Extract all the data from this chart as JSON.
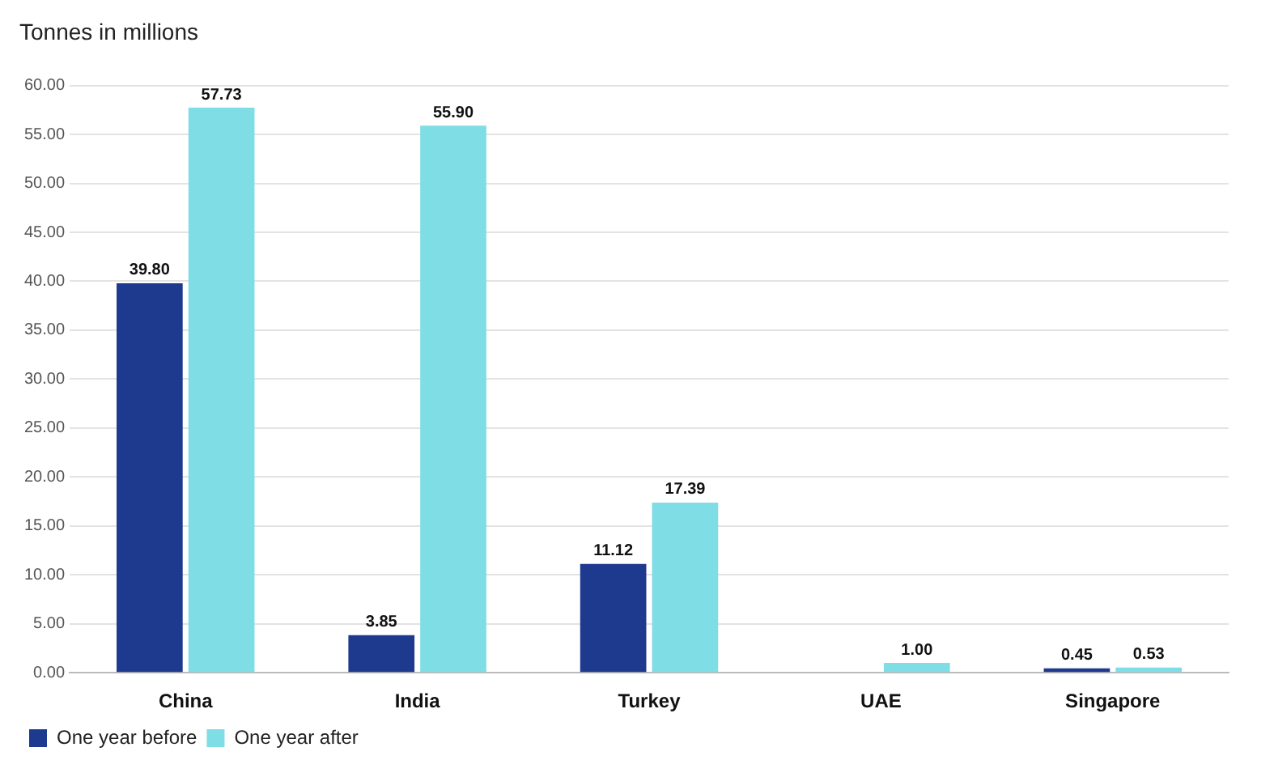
{
  "chart_data": {
    "type": "bar",
    "title": "Tonnes in millions",
    "categories": [
      "China",
      "India",
      "Turkey",
      "UAE",
      "Singapore"
    ],
    "series": [
      {
        "name": "One year before",
        "color": "#1e3a8f",
        "values": [
          39.8,
          3.85,
          11.12,
          null,
          0.45
        ],
        "value_labels": [
          "39.80",
          "3.85",
          "11.12",
          null,
          "0.45"
        ]
      },
      {
        "name": "One year after",
        "color": "#7fdde6",
        "values": [
          57.73,
          55.9,
          17.39,
          1.0,
          0.53
        ],
        "value_labels": [
          "57.73",
          "55.90",
          "17.39",
          "1.00",
          "0.53"
        ]
      }
    ],
    "ylim": [
      0,
      60
    ],
    "yticks": [
      {
        "value": 0,
        "label": "0.00"
      },
      {
        "value": 5,
        "label": "5.00"
      },
      {
        "value": 10,
        "label": "10.00"
      },
      {
        "value": 15,
        "label": "15.00"
      },
      {
        "value": 20,
        "label": "20.00"
      },
      {
        "value": 25,
        "label": "25.00"
      },
      {
        "value": 30,
        "label": "30.00"
      },
      {
        "value": 35,
        "label": "35.00"
      },
      {
        "value": 40,
        "label": "40.00"
      },
      {
        "value": 45,
        "label": "45.00"
      },
      {
        "value": 50,
        "label": "50.00"
      },
      {
        "value": 55,
        "label": "55.00"
      },
      {
        "value": 60,
        "label": "60.00"
      }
    ],
    "grid": "y",
    "legend": "bottom left"
  }
}
